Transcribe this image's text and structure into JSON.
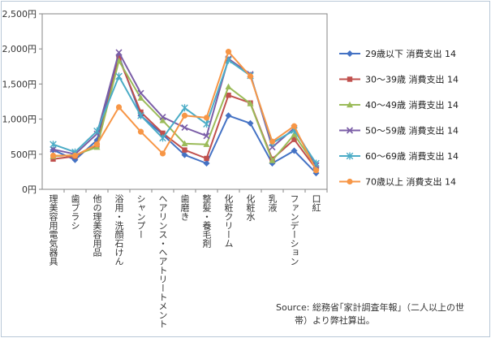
{
  "chart_data": {
    "type": "line",
    "categories": [
      "理美容用電気器具",
      "歯ブラシ",
      "他の理美容用品",
      "浴用・洗顔石けん",
      "シャンプー",
      "ヘアリンス・ヘアトリートメント",
      "歯磨き",
      "整髪・養毛剤",
      "化粧クリーム",
      "化粧水",
      "乳液",
      "ファンデーション",
      "口紅"
    ],
    "series": [
      {
        "name": "29歳以下 消費支出 14",
        "color": "#4472c4",
        "marker": "diamond",
        "values": [
          560,
          420,
          700,
          1900,
          1050,
          780,
          490,
          370,
          1050,
          940,
          370,
          550,
          230
        ]
      },
      {
        "name": "30～39歳 消費支出 14",
        "color": "#c0504d",
        "marker": "square",
        "values": [
          430,
          470,
          630,
          1870,
          1100,
          800,
          560,
          440,
          1340,
          1230,
          430,
          710,
          290
        ]
      },
      {
        "name": "40～49歳 消費支出 14",
        "color": "#9bbb59",
        "marker": "triangle",
        "values": [
          470,
          490,
          600,
          1830,
          1300,
          980,
          650,
          640,
          1460,
          1220,
          410,
          780,
          320
        ]
      },
      {
        "name": "50～59歳 消費支出 14",
        "color": "#7b5ea7",
        "marker": "x",
        "values": [
          570,
          500,
          790,
          1950,
          1370,
          1030,
          880,
          760,
          1860,
          1640,
          600,
          870,
          340
        ]
      },
      {
        "name": "60～69歳 消費支出 14",
        "color": "#4bacc6",
        "marker": "star",
        "values": [
          640,
          530,
          830,
          1610,
          1050,
          730,
          1160,
          930,
          1840,
          1620,
          660,
          840,
          370
        ]
      },
      {
        "name": "70歳以上 消費支出 14",
        "color": "#f79646",
        "marker": "circle",
        "values": [
          480,
          480,
          640,
          1170,
          820,
          510,
          1050,
          1020,
          1960,
          1610,
          680,
          900,
          270
        ]
      }
    ],
    "y_ticks": [
      "0円",
      "500円",
      "1,000円",
      "1,500円",
      "2,000円",
      "2,500円"
    ],
    "ylim": [
      0,
      2500
    ],
    "grid": false,
    "legend_position": "right"
  },
  "source_lines": [
    "Source: 総務省｢家計調査年報｣（二人以上の世",
    "帯）より弊社算出。"
  ]
}
